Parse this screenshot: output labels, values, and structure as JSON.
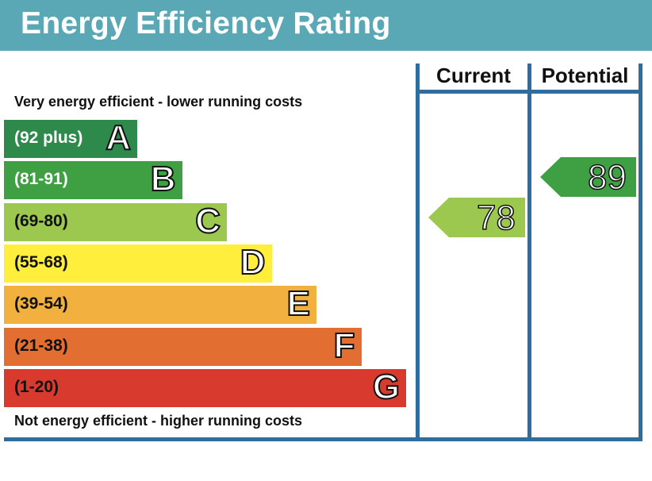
{
  "title": "Energy Efficiency Rating",
  "top_caption": "Very energy efficient - lower running costs",
  "bottom_caption": "Not energy efficient - higher running costs",
  "columns": {
    "current": "Current",
    "potential": "Potential"
  },
  "colors": {
    "header": "#5aa7b6",
    "frame": "#2f6e9c",
    "A": "#2e8a4a",
    "B": "#3ea043",
    "C": "#9cc84f",
    "D": "#ffef3c",
    "E": "#f2b13e",
    "F": "#e36e32",
    "G": "#d83b2d"
  },
  "chart_data": {
    "type": "bar",
    "bands": [
      {
        "letter": "A",
        "range": "(92 plus)",
        "min": 92,
        "max": null
      },
      {
        "letter": "B",
        "range": "(81-91)",
        "min": 81,
        "max": 91
      },
      {
        "letter": "C",
        "range": "(69-80)",
        "min": 69,
        "max": 80
      },
      {
        "letter": "D",
        "range": "(55-68)",
        "min": 55,
        "max": 68
      },
      {
        "letter": "E",
        "range": "(39-54)",
        "min": 39,
        "max": 54
      },
      {
        "letter": "F",
        "range": "(21-38)",
        "min": 21,
        "max": 38
      },
      {
        "letter": "G",
        "range": "(1-20)",
        "min": 1,
        "max": 20
      }
    ],
    "current": {
      "value": 78,
      "band": "C"
    },
    "potential": {
      "value": 89,
      "band": "B"
    }
  }
}
